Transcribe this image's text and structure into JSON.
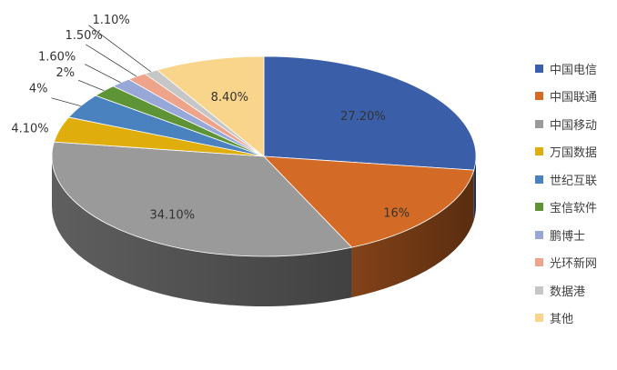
{
  "chart_data": {
    "type": "pie",
    "title": "",
    "legend_position": "right",
    "series": [
      {
        "name": "中国电信",
        "value": 27.2,
        "label": "27.20%",
        "color": "#3A5FA8"
      },
      {
        "name": "中国联通",
        "value": 16,
        "label": "16%",
        "color": "#D36B26"
      },
      {
        "name": "中国移动",
        "value": 34.1,
        "label": "34.10%",
        "color": "#9A9A9A"
      },
      {
        "name": "万国数据",
        "value": 4.1,
        "label": "4.10%",
        "color": "#E0AE0C"
      },
      {
        "name": "世纪互联",
        "value": 4,
        "label": "4%",
        "color": "#4A82C0"
      },
      {
        "name": "宝信软件",
        "value": 2,
        "label": "2%",
        "color": "#5E9436"
      },
      {
        "name": "鹏博士",
        "value": 1.6,
        "label": "1.60%",
        "color": "#97A8D8"
      },
      {
        "name": "光环新网",
        "value": 1.5,
        "label": "1.50%",
        "color": "#EEA48A"
      },
      {
        "name": "数据港",
        "value": 1.1,
        "label": "1.10%",
        "color": "#C6C6C6"
      },
      {
        "name": "其他",
        "value": 8.4,
        "label": "8.40%",
        "color": "#F8D58A"
      }
    ]
  }
}
